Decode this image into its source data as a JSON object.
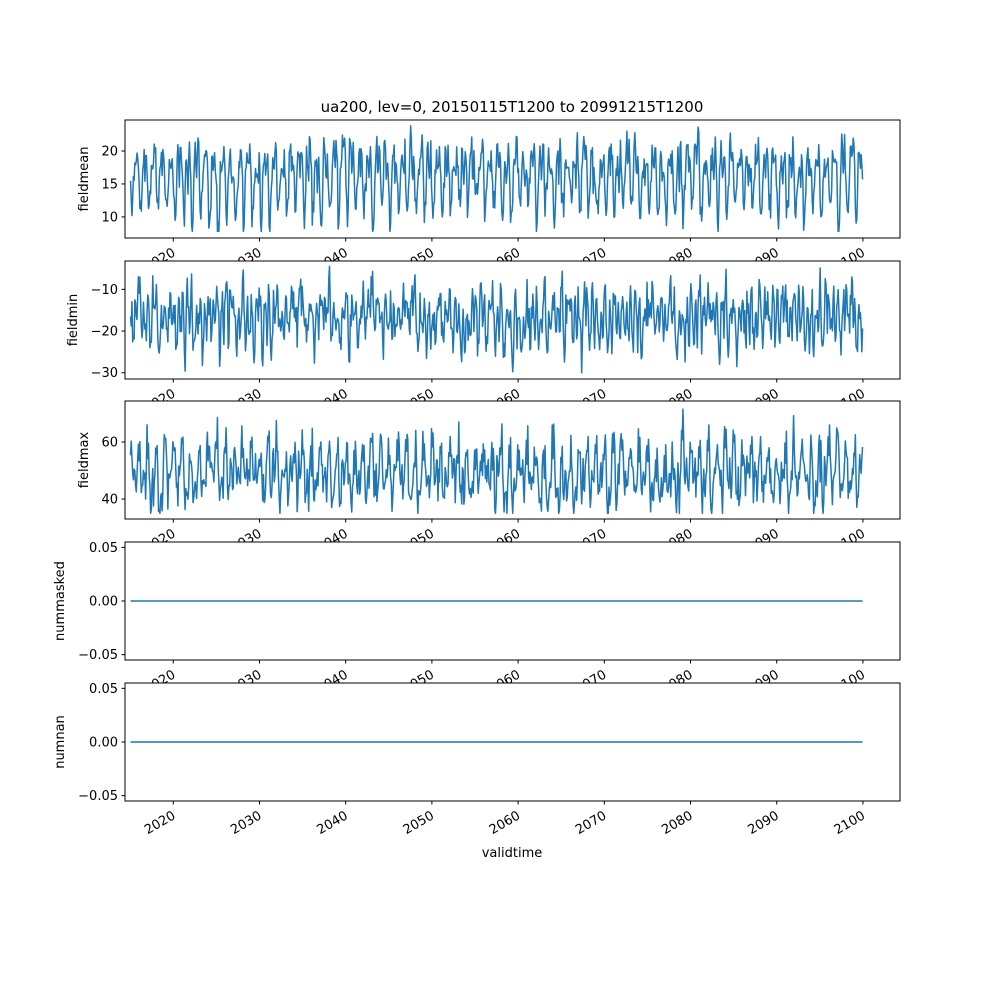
{
  "title": "ua200, lev=0, 20150115T1200 to 20991215T1200",
  "xlabel": "validtime",
  "line_color": "#1f77b4",
  "chart_data": [
    {
      "type": "line",
      "ylabel": "fieldmean",
      "xlim": [
        2014.4,
        2104.3
      ],
      "ylim": [
        6.8,
        24.7
      ],
      "yticks": [
        10,
        15,
        20
      ],
      "ytick_labels": [
        "10",
        "15",
        "20"
      ],
      "xticks": [
        2020,
        2030,
        2040,
        2050,
        2060,
        2070,
        2080,
        2090,
        2100
      ],
      "xtick_labels": [
        "2020",
        "2030",
        "2040",
        "2050",
        "2060",
        "2070",
        "2080",
        "2090",
        "2100"
      ],
      "x_start": 2015.04,
      "x_end": 2099.96,
      "frequency": "monthly",
      "monthly_climatology": [
        15,
        11,
        10.5,
        12,
        15,
        18,
        19.5,
        19,
        17,
        18.5,
        20,
        18
      ],
      "noise": 1.6,
      "min": 7.8,
      "max": 23.8,
      "seed": 11
    },
    {
      "type": "line",
      "ylabel": "fieldmin",
      "xlim": [
        2014.4,
        2104.3
      ],
      "ylim": [
        -31.5,
        -3.2
      ],
      "yticks": [
        -30,
        -20,
        -10
      ],
      "ytick_labels": [
        "−30",
        "−20",
        "−10"
      ],
      "xticks": [
        2020,
        2030,
        2040,
        2050,
        2060,
        2070,
        2080,
        2090,
        2100
      ],
      "xtick_labels": [
        "2020",
        "2030",
        "2040",
        "2050",
        "2060",
        "2070",
        "2080",
        "2090",
        "2100"
      ],
      "x_start": 2015.04,
      "x_end": 2099.96,
      "frequency": "monthly",
      "monthly_climatology": [
        -12,
        -13,
        -16,
        -20,
        -23,
        -21,
        -16,
        -13,
        -14,
        -17,
        -19,
        -15
      ],
      "noise": 3.2,
      "min": -30,
      "max": -4.5,
      "seed": 23
    },
    {
      "type": "line",
      "ylabel": "fieldmax",
      "xlim": [
        2014.4,
        2104.3
      ],
      "ylim": [
        33,
        74.4
      ],
      "yticks": [
        40,
        60
      ],
      "ytick_labels": [
        "40",
        "60"
      ],
      "xticks": [
        2020,
        2030,
        2040,
        2050,
        2060,
        2070,
        2080,
        2090,
        2100
      ],
      "xtick_labels": [
        "2020",
        "2030",
        "2040",
        "2050",
        "2060",
        "2070",
        "2080",
        "2090",
        "2100"
      ],
      "x_start": 2015.04,
      "x_end": 2099.96,
      "frequency": "monthly",
      "monthly_climatology": [
        55,
        60,
        52,
        45,
        42,
        44,
        48,
        46,
        44,
        47,
        52,
        58
      ],
      "noise": 4.2,
      "min": 35,
      "max": 73.5,
      "seed": 37
    },
    {
      "type": "line",
      "ylabel": "nummasked",
      "xlim": [
        2014.4,
        2104.3
      ],
      "ylim": [
        -0.055,
        0.055
      ],
      "yticks": [
        -0.05,
        0.0,
        0.05
      ],
      "ytick_labels": [
        "−0.05",
        "0.00",
        "0.05"
      ],
      "xticks": [
        2020,
        2030,
        2040,
        2050,
        2060,
        2070,
        2080,
        2090,
        2100
      ],
      "xtick_labels": [
        "2020",
        "2030",
        "2040",
        "2050",
        "2060",
        "2070",
        "2080",
        "2090",
        "2100"
      ],
      "x_start": 2015.04,
      "x_end": 2099.96,
      "frequency": "monthly",
      "constant": 0
    },
    {
      "type": "line",
      "ylabel": "numnan",
      "xlim": [
        2014.4,
        2104.3
      ],
      "ylim": [
        -0.055,
        0.055
      ],
      "yticks": [
        -0.05,
        0.0,
        0.05
      ],
      "ytick_labels": [
        "−0.05",
        "0.00",
        "0.05"
      ],
      "xticks": [
        2020,
        2030,
        2040,
        2050,
        2060,
        2070,
        2080,
        2090,
        2100
      ],
      "xtick_labels": [
        "2020",
        "2030",
        "2040",
        "2050",
        "2060",
        "2070",
        "2080",
        "2090",
        "2100"
      ],
      "x_start": 2015.04,
      "x_end": 2099.96,
      "frequency": "monthly",
      "constant": 0
    }
  ]
}
